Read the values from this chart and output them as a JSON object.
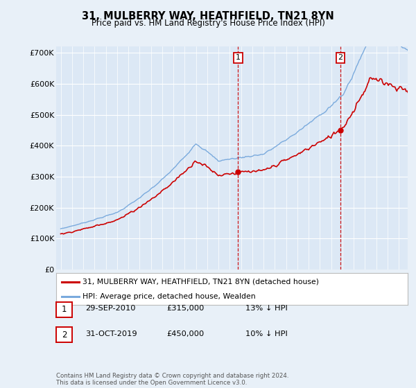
{
  "title": "31, MULBERRY WAY, HEATHFIELD, TN21 8YN",
  "subtitle": "Price paid vs. HM Land Registry's House Price Index (HPI)",
  "background_color": "#e8f0f8",
  "plot_bg_color": "#dce8f5",
  "ylim": [
    0,
    720000
  ],
  "yticks": [
    0,
    100000,
    200000,
    300000,
    400000,
    500000,
    600000,
    700000
  ],
  "ytick_labels": [
    "£0",
    "£100K",
    "£200K",
    "£300K",
    "£400K",
    "£500K",
    "£600K",
    "£700K"
  ],
  "legend_line1": "31, MULBERRY WAY, HEATHFIELD, TN21 8YN (detached house)",
  "legend_line2": "HPI: Average price, detached house, Wealden",
  "legend_color1": "#cc0000",
  "legend_color2": "#7aaadd",
  "sale1_label": "1",
  "sale1_date": "29-SEP-2010",
  "sale1_price": "£315,000",
  "sale1_note": "13% ↓ HPI",
  "sale2_label": "2",
  "sale2_date": "31-OCT-2019",
  "sale2_price": "£450,000",
  "sale2_note": "10% ↓ HPI",
  "footer": "Contains HM Land Registry data © Crown copyright and database right 2024.\nThis data is licensed under the Open Government Licence v3.0.",
  "sale1_x": 2010.75,
  "sale1_y": 315000,
  "sale2_x": 2019.83,
  "sale2_y": 450000,
  "vline_color": "#cc0000",
  "vline_style": "--",
  "xlim_left": 1994.6,
  "xlim_right": 2025.8
}
